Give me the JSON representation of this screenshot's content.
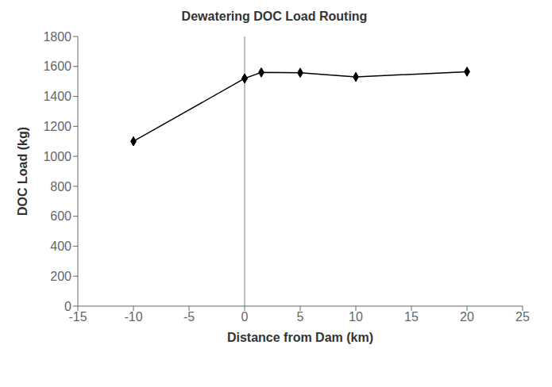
{
  "chart_data": {
    "type": "line",
    "title": "Dewatering DOC Load Routing",
    "x_label": "Distance from Dam (km)",
    "y_label": "DOC Load (kg)",
    "series": [
      {
        "x": [
          -10,
          0
        ],
        "values": [
          1100,
          1520
        ],
        "color": "#000000",
        "marker": "diamond"
      },
      {
        "x": [
          0,
          1.5,
          5,
          10,
          20
        ],
        "values": [
          1520,
          1560,
          1558,
          1530,
          1565
        ],
        "color": "#000000",
        "marker": "diamond"
      }
    ],
    "vlines": [
      {
        "x": 0,
        "color": "#808080"
      }
    ],
    "xlim": [
      -15,
      25
    ],
    "ylim": [
      0,
      1800
    ],
    "xticks": [
      -15,
      -10,
      -5,
      0,
      5,
      10,
      15,
      20,
      25
    ],
    "yticks": [
      0,
      200,
      400,
      600,
      800,
      1000,
      1200,
      1400,
      1600,
      1800
    ],
    "grid": false
  }
}
